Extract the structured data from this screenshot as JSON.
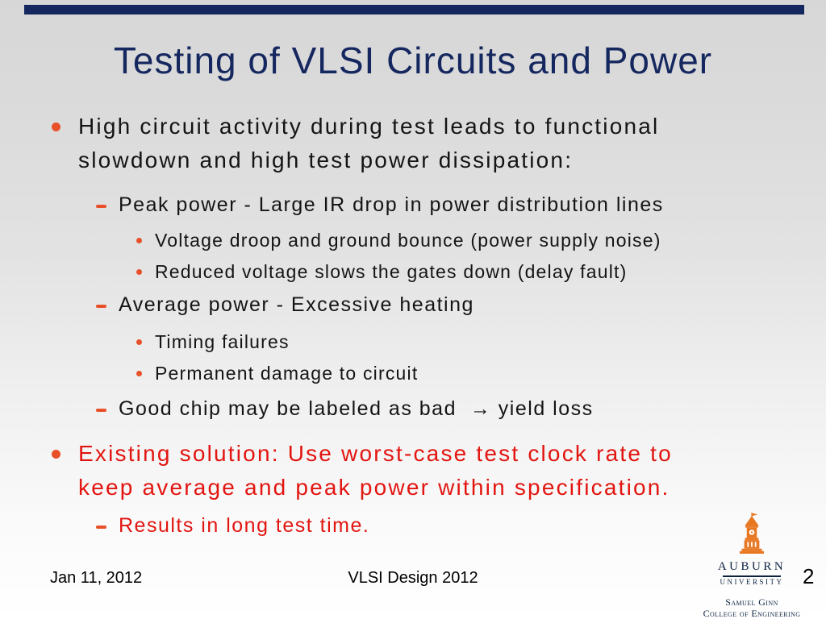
{
  "slide": {
    "title": "Testing of VLSI Circuits and Power",
    "colors": {
      "navy": "#15275f",
      "text": "#141414",
      "red": "#e21510",
      "marker_orange": "#e8502a",
      "auburn_orange": "#e87722",
      "auburn_navy": "#0c2340"
    },
    "bullets": [
      {
        "level": 1,
        "marker": "dot",
        "color": "default",
        "lines": [
          "High circuit activity during test leads to functional",
          "slowdown and high test power dissipation:"
        ]
      },
      {
        "level": 2,
        "marker": "dash",
        "color": "default",
        "lines": [
          "Peak power - Large IR drop in power distribution lines"
        ]
      },
      {
        "level": 3,
        "marker": "sdot",
        "color": "default",
        "lines": [
          "Voltage droop and ground bounce (power supply noise)"
        ]
      },
      {
        "level": 3,
        "marker": "sdot",
        "color": "default",
        "lines": [
          "Reduced voltage slows the gates down (delay fault)"
        ]
      },
      {
        "level": 2,
        "marker": "dash",
        "color": "default",
        "lines": [
          "Average power - Excessive heating"
        ]
      },
      {
        "level": 3,
        "marker": "sdot",
        "color": "default",
        "lines": [
          "Timing failures"
        ]
      },
      {
        "level": 3,
        "marker": "sdot",
        "color": "default",
        "lines": [
          "Permanent damage to circuit"
        ]
      },
      {
        "level": 2,
        "marker": "dash",
        "color": "default",
        "lines": [
          "Good chip may be labeled as bad  → yield loss"
        ]
      },
      {
        "level": 1,
        "marker": "dot",
        "color": "red",
        "lines": [
          "Existing solution: Use worst-case test clock rate to",
          "keep average and peak power within specification."
        ]
      },
      {
        "level": 2,
        "marker": "dash",
        "color": "red",
        "lines": [
          "Results in long test time."
        ]
      }
    ],
    "footer": {
      "date": "Jan 11, 2012",
      "center": "VLSI Design 2012",
      "page": "2"
    },
    "logo": {
      "name": "AUBURN",
      "sub": "UNIVERSITY",
      "college_line1": "Samuel Ginn",
      "college_line2": "College of Engineering"
    }
  }
}
